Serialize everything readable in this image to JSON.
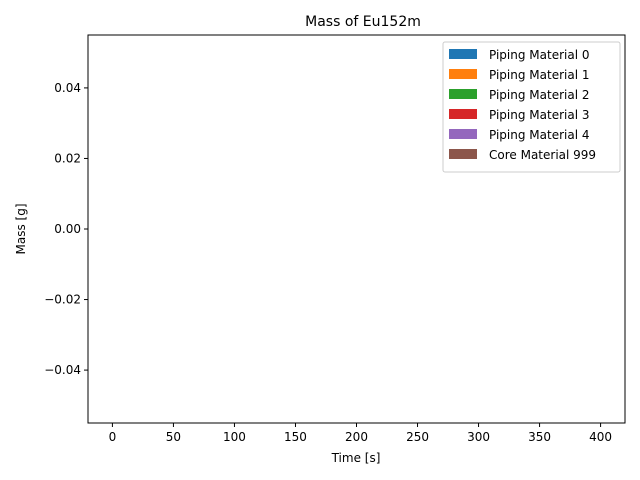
{
  "chart_data": {
    "type": "area",
    "title": "Mass of Eu152m",
    "xlabel": "Time [s]",
    "ylabel": "Mass [g]",
    "xlim": [
      -20,
      420
    ],
    "ylim": [
      -0.055,
      0.055
    ],
    "x_ticks": [
      0,
      50,
      100,
      150,
      200,
      250,
      300,
      350,
      400
    ],
    "x_tick_labels": [
      "0",
      "50",
      "100",
      "150",
      "200",
      "250",
      "300",
      "350",
      "400"
    ],
    "y_ticks": [
      -0.04,
      -0.02,
      0.0,
      0.02,
      0.04
    ],
    "y_tick_labels": [
      "−0.04",
      "−0.02",
      "0.00",
      "0.02",
      "0.04"
    ],
    "grid": false,
    "legend_position": "top-right",
    "series": [
      {
        "name": "Piping Material 0",
        "color": "#1f77b4",
        "values": []
      },
      {
        "name": "Piping Material 1",
        "color": "#ff7f0e",
        "values": []
      },
      {
        "name": "Piping Material 2",
        "color": "#2ca02c",
        "values": []
      },
      {
        "name": "Piping Material 3",
        "color": "#d62728",
        "values": []
      },
      {
        "name": "Piping Material 4",
        "color": "#9467bd",
        "values": []
      },
      {
        "name": "Core Material 999",
        "color": "#8c564b",
        "values": []
      }
    ]
  }
}
